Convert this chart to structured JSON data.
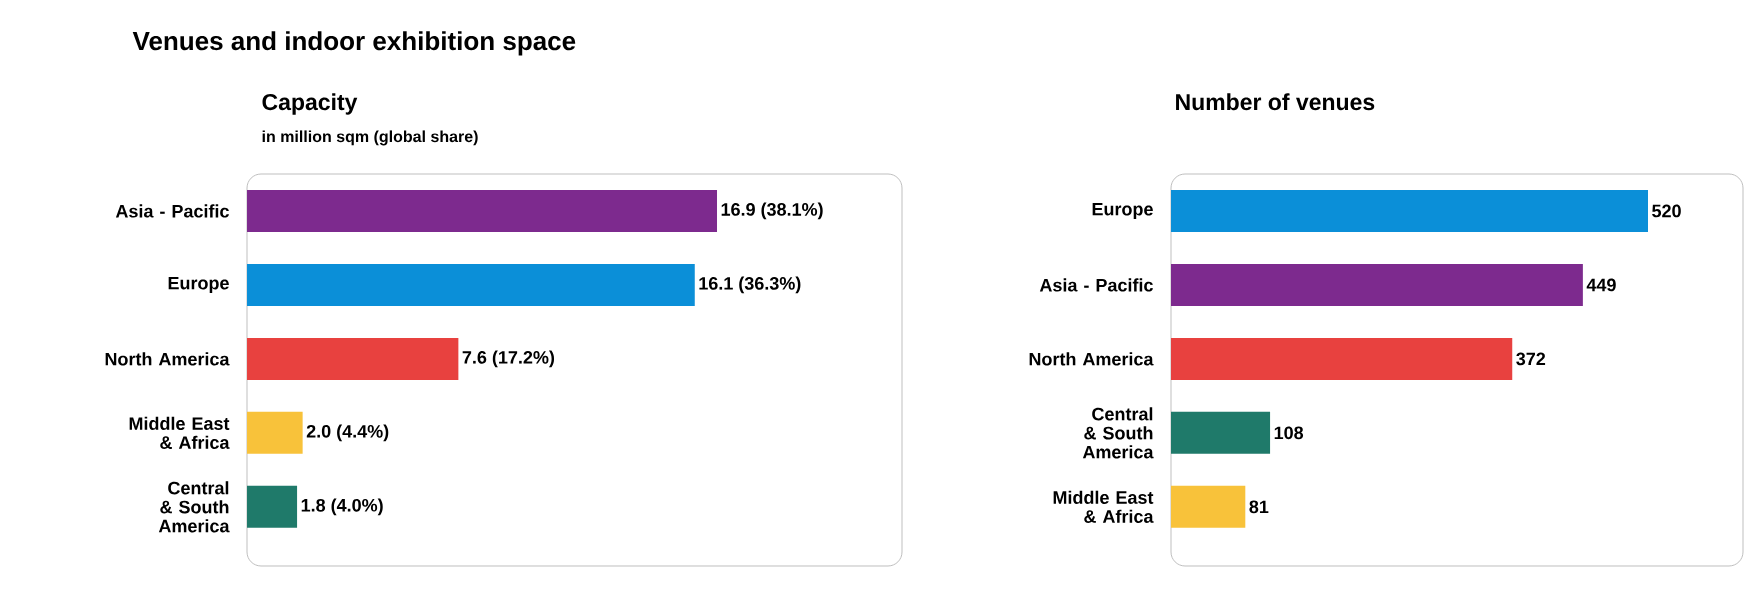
{
  "chart_data": [
    {
      "type": "bar",
      "orientation": "horizontal",
      "title": "Capacity",
      "subtitle": "in million sqm (global share)",
      "annotations": [
        "Venues and indoor exhibition space"
      ],
      "categories": [
        "Asia - Pacific",
        "Europe",
        "North America",
        "Middle East & Africa",
        "Central & South America"
      ],
      "values": [
        16.9,
        16.1,
        7.6,
        2.0,
        1.8
      ],
      "colors": [
        "#7d2a8e",
        "#0b8fd8",
        "#e8413f",
        "#f8c23a",
        "#1f7a6a"
      ],
      "value_labels": [
        "16.9 (38.1%)",
        "16.1 (36.3%)",
        "7.6 (17.2%)",
        "2.0 (4.4%)",
        "1.8 (4.0%)"
      ]
    },
    {
      "type": "bar",
      "orientation": "horizontal",
      "title": "Number of venues",
      "categories": [
        "Europe",
        "Asia - Pacific",
        "North America",
        "Central & South America",
        "Middle East & Africa"
      ],
      "values": [
        520,
        449,
        372,
        108,
        81
      ],
      "colors": [
        "#0b8fd8",
        "#7d2a8e",
        "#e8413f",
        "#1f7a6a",
        "#f8c23a"
      ],
      "data_labels": true
    }
  ]
}
